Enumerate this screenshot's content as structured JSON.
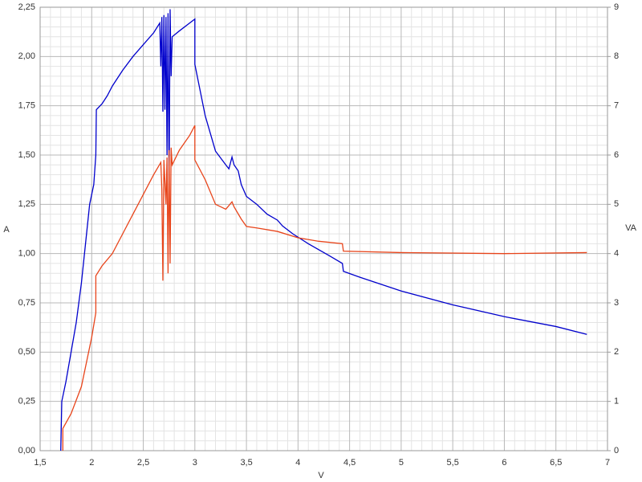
{
  "chart_data": {
    "type": "line",
    "x_label": "V",
    "y_label": "A",
    "y2_label": "VA",
    "xlim": [
      1.5,
      7
    ],
    "xticks": [
      {
        "value": 1.5,
        "label": "1,5"
      },
      2,
      {
        "value": 2.5,
        "label": "2,5"
      },
      3,
      {
        "value": 3.5,
        "label": "3,5"
      },
      4,
      {
        "value": 4.5,
        "label": "4,5"
      },
      5,
      {
        "value": 5.5,
        "label": "5,5"
      },
      6,
      {
        "value": 6.5,
        "label": "6,5"
      },
      7
    ],
    "ylim": [
      0,
      2.25
    ],
    "yticks": [
      {
        "value": 0,
        "label": "0,00"
      },
      {
        "value": 0.25,
        "label": "0,25"
      },
      {
        "value": 0.5,
        "label": "0,50"
      },
      {
        "value": 0.75,
        "label": "0,75"
      },
      {
        "value": 1,
        "label": "1,00"
      },
      {
        "value": 1.25,
        "label": "1,25"
      },
      {
        "value": 1.5,
        "label": "1,50"
      },
      {
        "value": 1.75,
        "label": "1,75"
      },
      {
        "value": 2,
        "label": "2,00"
      },
      {
        "value": 2.25,
        "label": "2,25"
      }
    ],
    "y2lim": [
      0,
      9
    ],
    "y2ticks": [
      0,
      1,
      2,
      3,
      4,
      5,
      6,
      7,
      8,
      9
    ],
    "grid": true,
    "y_color": "#0000cc",
    "y2_color": "#cc0000",
    "series": [
      {
        "color": "#0000cc",
        "x": [
          1.7,
          1.71,
          1.75,
          1.8,
          1.85,
          1.9,
          1.95,
          1.98,
          2.02,
          2.04,
          2.045,
          2.1,
          2.15,
          2.2,
          2.3,
          2.4,
          2.5,
          2.6,
          2.66,
          2.67,
          2.68,
          2.69,
          2.7,
          2.71,
          2.72,
          2.73,
          2.74,
          2.75,
          2.76,
          2.77,
          2.78,
          2.85,
          2.95,
          3.0,
          3.0,
          3.1,
          3.2,
          3.3,
          3.33,
          3.36,
          3.38,
          3.42,
          3.45,
          3.5,
          3.6,
          3.7,
          3.8,
          3.85,
          3.95,
          4.1,
          4.3,
          4.43,
          4.44,
          4.6,
          5,
          5.5,
          6,
          6.5,
          6.8
        ],
        "values": [
          0,
          0.25,
          0.35,
          0.5,
          0.65,
          0.85,
          1.1,
          1.25,
          1.35,
          1.5,
          1.73,
          1.76,
          1.8,
          1.85,
          1.93,
          2.0,
          2.06,
          2.12,
          2.17,
          1.95,
          2.2,
          1.72,
          2.21,
          1.73,
          2.2,
          1.5,
          2.22,
          1.32,
          2.24,
          1.9,
          2.1,
          2.13,
          2.17,
          2.19,
          1.96,
          1.7,
          1.52,
          1.45,
          1.43,
          1.49,
          1.45,
          1.42,
          1.35,
          1.29,
          1.25,
          1.2,
          1.17,
          1.14,
          1.1,
          1.05,
          0.99,
          0.95,
          0.91,
          0.88,
          0.81,
          0.74,
          0.68,
          0.63,
          0.59
        ]
      },
      {
        "color": "#e8441a",
        "axis": "y2",
        "x": [
          1.72,
          1.72,
          1.8,
          1.9,
          1.95,
          2.0,
          2.04,
          2.04,
          2.1,
          2.2,
          2.3,
          2.4,
          2.5,
          2.6,
          2.67,
          2.68,
          2.69,
          2.7,
          2.72,
          2.73,
          2.74,
          2.75,
          2.76,
          2.77,
          2.78,
          2.85,
          2.95,
          3.0,
          3.0,
          3.1,
          3.2,
          3.3,
          3.36,
          3.38,
          3.45,
          3.5,
          3.6,
          3.8,
          4.0,
          4.2,
          4.43,
          4.44,
          5,
          6,
          6.8
        ],
        "values": [
          0,
          0.45,
          0.75,
          1.3,
          1.8,
          2.3,
          2.8,
          3.55,
          3.75,
          4.0,
          4.4,
          4.8,
          5.2,
          5.6,
          5.85,
          5.3,
          3.45,
          5.9,
          5.0,
          5.95,
          3.6,
          6.1,
          3.8,
          6.15,
          5.8,
          6.1,
          6.4,
          6.6,
          5.9,
          5.5,
          5.0,
          4.9,
          5.05,
          4.95,
          4.7,
          4.55,
          4.52,
          4.45,
          4.32,
          4.25,
          4.2,
          4.05,
          4.02,
          4.0,
          4.02
        ]
      }
    ]
  }
}
